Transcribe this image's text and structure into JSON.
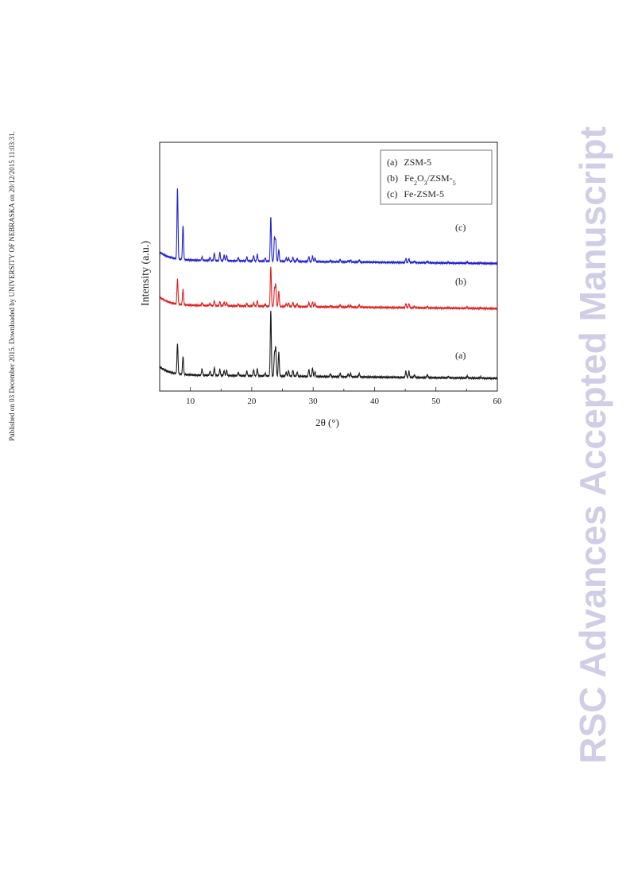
{
  "sidebar_note": "Published on 03 December 2015. Downloaded by UNIVERSITY OF NEBRASKA on 20/12/2015 11:03:31.",
  "watermark": "RSC Advances Accepted Manuscript",
  "chart_data": {
    "type": "line",
    "title": "",
    "xlabel": "2θ (°)",
    "ylabel": "Intensity (a.u.)",
    "xlim": [
      5,
      60
    ],
    "xticks": [
      10,
      20,
      30,
      40,
      50,
      60
    ],
    "y_ticks_shown": false,
    "grid": false,
    "legend_position": "top-right",
    "legend": [
      {
        "label_prefix": "(a)",
        "label": "ZSM-5"
      },
      {
        "label_prefix": "(b)",
        "label": "Fe2O3/ZSM-5"
      },
      {
        "label_prefix": "(c)",
        "label": "Fe-ZSM-5"
      }
    ],
    "curve_labels": [
      "(a)",
      "(b)",
      "(c)"
    ],
    "series": [
      {
        "name": "(a) ZSM-5",
        "color": "#1a1a1a",
        "baseline": 0.0,
        "peaks": [
          [
            7.9,
            4.4
          ],
          [
            8.8,
            2.6
          ],
          [
            11.9,
            0.9
          ],
          [
            13.2,
            0.6
          ],
          [
            13.9,
            1.1
          ],
          [
            14.8,
            0.9
          ],
          [
            15.5,
            0.7
          ],
          [
            15.9,
            0.8
          ],
          [
            17.8,
            0.5
          ],
          [
            19.2,
            0.7
          ],
          [
            20.3,
            0.9
          ],
          [
            20.9,
            1.0
          ],
          [
            22.2,
            0.4
          ],
          [
            23.1,
            9.5
          ],
          [
            23.7,
            3.2
          ],
          [
            23.9,
            4.1
          ],
          [
            24.4,
            3.5
          ],
          [
            25.6,
            0.6
          ],
          [
            26.0,
            0.8
          ],
          [
            26.7,
            0.9
          ],
          [
            27.4,
            0.6
          ],
          [
            29.3,
            1.0
          ],
          [
            29.9,
            1.2
          ],
          [
            30.3,
            0.7
          ],
          [
            32.8,
            0.4
          ],
          [
            34.4,
            0.5
          ],
          [
            35.7,
            0.4
          ],
          [
            36.1,
            0.5
          ],
          [
            37.5,
            0.5
          ],
          [
            45.1,
            0.9
          ],
          [
            45.6,
            0.9
          ],
          [
            46.5,
            0.4
          ],
          [
            48.6,
            0.4
          ],
          [
            52.0,
            0.2
          ],
          [
            55.1,
            0.3
          ],
          [
            57.3,
            0.2
          ]
        ]
      },
      {
        "name": "(b) Fe2O3/ZSM-5",
        "color": "#dd2222",
        "baseline": 10.2,
        "peaks": [
          [
            7.9,
            3.7
          ],
          [
            8.8,
            2.2
          ],
          [
            11.9,
            0.4
          ],
          [
            13.2,
            0.3
          ],
          [
            13.9,
            0.7
          ],
          [
            14.8,
            0.6
          ],
          [
            15.5,
            0.5
          ],
          [
            15.9,
            0.5
          ],
          [
            17.8,
            0.3
          ],
          [
            19.2,
            0.4
          ],
          [
            20.3,
            0.5
          ],
          [
            20.9,
            0.8
          ],
          [
            22.2,
            0.3
          ],
          [
            23.1,
            5.8
          ],
          [
            23.7,
            2.5
          ],
          [
            23.9,
            3.1
          ],
          [
            24.4,
            2.2
          ],
          [
            25.6,
            0.4
          ],
          [
            26.0,
            0.5
          ],
          [
            26.7,
            0.6
          ],
          [
            27.4,
            0.4
          ],
          [
            29.3,
            0.6
          ],
          [
            29.9,
            0.7
          ],
          [
            30.3,
            0.5
          ],
          [
            32.8,
            0.2
          ],
          [
            34.4,
            0.3
          ],
          [
            35.7,
            0.2
          ],
          [
            36.1,
            0.3
          ],
          [
            37.5,
            0.3
          ],
          [
            45.1,
            0.6
          ],
          [
            45.6,
            0.6
          ],
          [
            46.5,
            0.2
          ],
          [
            48.6,
            0.2
          ],
          [
            52.0,
            0.1
          ],
          [
            55.1,
            0.2
          ],
          [
            57.3,
            0.1
          ]
        ]
      },
      {
        "name": "(c) Fe-ZSM-5",
        "color": "#2222cc",
        "baseline": 16.8,
        "peaks": [
          [
            7.9,
            10.3
          ],
          [
            8.8,
            5.0
          ],
          [
            11.9,
            0.5
          ],
          [
            13.2,
            0.4
          ],
          [
            13.9,
            1.1
          ],
          [
            14.8,
            1.2
          ],
          [
            15.5,
            0.8
          ],
          [
            15.9,
            0.8
          ],
          [
            17.8,
            0.5
          ],
          [
            19.2,
            0.6
          ],
          [
            20.3,
            0.8
          ],
          [
            20.9,
            1.0
          ],
          [
            22.2,
            0.4
          ],
          [
            23.1,
            6.4
          ],
          [
            23.7,
            3.4
          ],
          [
            23.9,
            3.0
          ],
          [
            24.4,
            1.7
          ],
          [
            25.6,
            0.5
          ],
          [
            26.0,
            0.5
          ],
          [
            26.7,
            0.6
          ],
          [
            27.4,
            0.4
          ],
          [
            29.3,
            0.7
          ],
          [
            29.9,
            0.8
          ],
          [
            30.3,
            0.5
          ],
          [
            32.8,
            0.2
          ],
          [
            34.4,
            0.3
          ],
          [
            35.7,
            0.2
          ],
          [
            36.1,
            0.3
          ],
          [
            37.5,
            0.3
          ],
          [
            45.1,
            0.6
          ],
          [
            45.6,
            0.6
          ],
          [
            46.5,
            0.2
          ],
          [
            48.6,
            0.2
          ],
          [
            52.0,
            0.1
          ],
          [
            55.1,
            0.2
          ],
          [
            57.3,
            0.1
          ]
        ]
      }
    ]
  }
}
